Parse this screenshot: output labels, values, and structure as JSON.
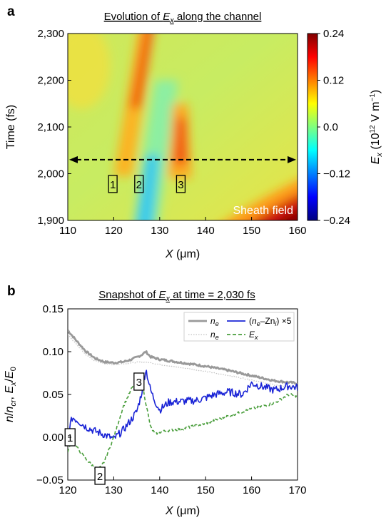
{
  "chart_data": [
    {
      "panel_label": "a",
      "type": "heatmap",
      "title": "Evolution of E_x along the channel",
      "title_parts": {
        "pre": "Evolution of ",
        "sym": "E",
        "sub": "x",
        "post": " along the channel"
      },
      "xlabel": "X (μm)",
      "xlabel_parts": {
        "sym": "X",
        "unit": " (μm)"
      },
      "ylabel": "Time (fs)",
      "xlim": [
        110,
        160
      ],
      "ylim": [
        1900,
        2300
      ],
      "xticks": [
        110,
        120,
        130,
        140,
        150,
        160
      ],
      "yticks": [
        1900,
        2000,
        2100,
        2200,
        2300
      ],
      "ytick_labels": [
        "1,900",
        "2,000",
        "2,100",
        "2,200",
        "2,300"
      ],
      "colorbar": {
        "label": "E_x (10^12 V m^-1)",
        "label_parts": {
          "sym": "E",
          "sub": "x",
          "unit": " (10",
          "exp": "12",
          "unit2": " V m",
          "exp2": "−1",
          "close": ")"
        },
        "range": [
          -0.24,
          0.24
        ],
        "ticks": [
          0.24,
          0.12,
          0.0,
          -0.12,
          -0.24
        ],
        "tick_labels": [
          "0.24",
          "0.12",
          "0.0",
          "−0.12",
          "−0.24"
        ],
        "colormap": "jet",
        "colors": [
          "#00007f",
          "#0000ff",
          "#007fff",
          "#00ffff",
          "#7fff7f",
          "#ffff00",
          "#ff7f00",
          "#ff0000",
          "#7f0000"
        ]
      },
      "cutline_time": 2030,
      "features": [
        {
          "sign": "positive",
          "x_start": 120,
          "x_end": 129,
          "t_start": 1995,
          "t_end": 2300,
          "peak": 0.17
        },
        {
          "sign": "negative",
          "x_start": 123.5,
          "x_end": 131,
          "t_start": 1900,
          "t_end": 2200,
          "peak": -0.1
        },
        {
          "sign": "positive",
          "x": 135,
          "t_start": 1990,
          "t_end": 2150,
          "peak": 0.16
        },
        {
          "sign": "positive",
          "x": 160,
          "t": 1900,
          "peak": 0.24
        }
      ],
      "markers": [
        {
          "label": "1",
          "x": 119.8,
          "t": 1978
        },
        {
          "label": "2",
          "x": 125.5,
          "t": 1978
        },
        {
          "label": "3",
          "x": 134.6,
          "t": 1978
        }
      ],
      "annotation": "Sheath field"
    },
    {
      "panel_label": "b",
      "type": "line",
      "title": "Snapshot of E_x at time = 2,030 fs",
      "title_parts": {
        "pre": "Snapshot of ",
        "sym": "E",
        "sub": "x",
        "post": " at time = 2,030 fs"
      },
      "xlabel": "X (μm)",
      "ylabel": "n/n_cr, E_x/E_0",
      "xlim": [
        120,
        170
      ],
      "ylim": [
        -0.05,
        0.15
      ],
      "xticks": [
        120,
        130,
        140,
        150,
        160,
        170
      ],
      "yticks": [
        -0.05,
        0.0,
        0.05,
        0.1,
        0.15
      ],
      "ytick_labels": [
        "−0.05",
        "0.00",
        "0.05",
        "0.10",
        "0.15"
      ],
      "legend_position": "top-right",
      "series": [
        {
          "name": "n_e",
          "legend": {
            "sym": "n",
            "sub": "e",
            "post": ""
          },
          "color": "#999999",
          "style": "solid",
          "width": 2.8,
          "x": [
            120,
            122,
            124,
            126,
            128,
            130,
            132,
            134,
            136,
            137,
            138,
            140,
            145,
            150,
            155,
            160,
            165,
            170
          ],
          "y": [
            0.125,
            0.112,
            0.1,
            0.092,
            0.088,
            0.087,
            0.088,
            0.091,
            0.096,
            0.1,
            0.094,
            0.091,
            0.087,
            0.083,
            0.078,
            0.072,
            0.066,
            0.063
          ]
        },
        {
          "name": "n_e",
          "legend": {
            "sym": "n",
            "sub": "e",
            "post": ""
          },
          "color": "#c4c4c4",
          "style": "dotted",
          "width": 1.3,
          "x": [
            120,
            122,
            124,
            126,
            128,
            130,
            132,
            134,
            136,
            137,
            138,
            140,
            145,
            150,
            155,
            160,
            165,
            170
          ],
          "y": [
            0.12,
            0.108,
            0.096,
            0.089,
            0.086,
            0.085,
            0.086,
            0.087,
            0.088,
            0.088,
            0.087,
            0.085,
            0.081,
            0.077,
            0.072,
            0.067,
            0.061,
            0.057
          ]
        },
        {
          "name": "(n_e−Zn_i) ×5",
          "legend": {
            "pre": "(",
            "sym": "n",
            "sub": "e",
            "mid": "–Zn",
            "sub2": "i",
            "post": ") ×5"
          },
          "color": "#1a24d6",
          "style": "solid",
          "width": 1.6,
          "x": [
            120,
            121,
            122,
            124,
            126,
            128,
            130,
            132,
            134,
            135,
            136,
            137,
            138,
            139,
            140,
            142,
            145,
            148,
            150,
            152,
            155,
            158,
            160,
            163,
            165,
            168,
            170
          ],
          "y": [
            0.005,
            0.023,
            0.02,
            0.012,
            0.007,
            0.003,
            -0.002,
            0.008,
            0.022,
            0.03,
            0.05,
            0.08,
            0.055,
            0.042,
            0.032,
            0.041,
            0.042,
            0.043,
            0.046,
            0.05,
            0.053,
            0.05,
            0.063,
            0.058,
            0.055,
            0.06,
            0.058
          ]
        },
        {
          "name": "E_x",
          "legend": {
            "sym": "E",
            "sub": "x",
            "post": ""
          },
          "color": "#4a9e3c",
          "style": "dashed",
          "width": 1.6,
          "x": [
            120,
            121,
            122,
            124,
            126,
            127,
            128,
            130,
            132,
            134,
            135,
            136,
            137,
            138,
            139,
            140,
            142,
            145,
            150,
            155,
            160,
            165,
            168,
            170
          ],
          "y": [
            -0.018,
            0.0,
            -0.012,
            -0.026,
            -0.036,
            -0.036,
            -0.028,
            0.0,
            0.035,
            0.058,
            0.063,
            0.067,
            0.04,
            0.012,
            0.004,
            0.006,
            0.008,
            0.01,
            0.016,
            0.025,
            0.033,
            0.04,
            0.05,
            0.048
          ]
        }
      ],
      "markers": [
        {
          "label": "1",
          "x": 120.5,
          "y": 0.0
        },
        {
          "label": "2",
          "x": 127.0,
          "y": -0.045
        },
        {
          "label": "3",
          "x": 135.5,
          "y": 0.065
        }
      ]
    }
  ]
}
